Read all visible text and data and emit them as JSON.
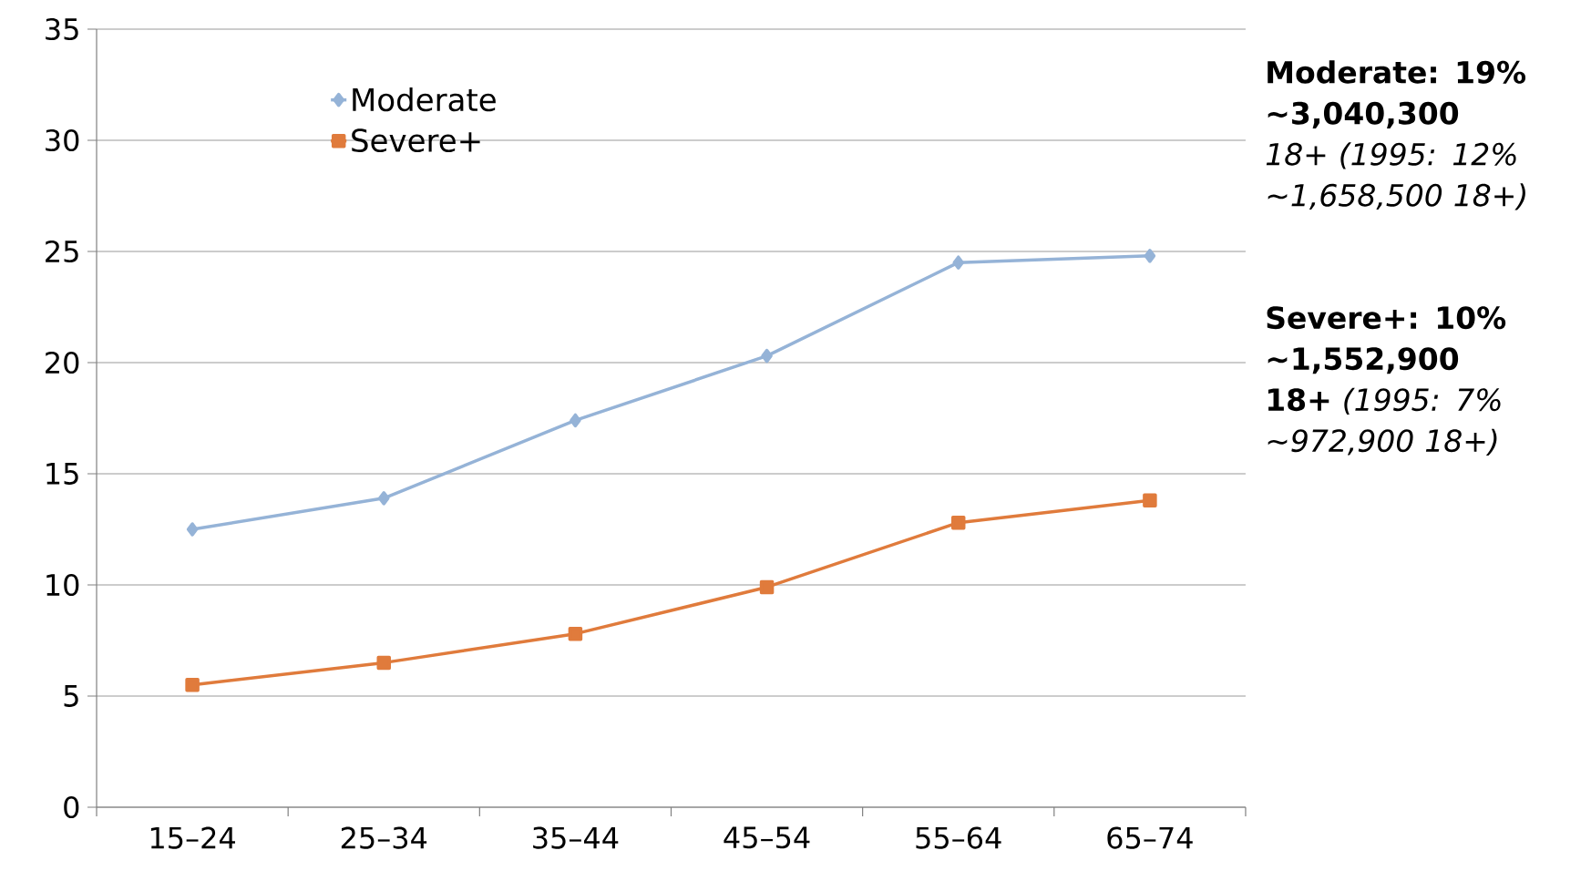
{
  "chart_data": {
    "type": "line",
    "categories": [
      "15–24",
      "25–34",
      "35–44",
      "45–54",
      "55–64",
      "65–74"
    ],
    "series": [
      {
        "name": "Moderate",
        "color": "#95b3d7",
        "marker": "diamond",
        "values": [
          12.5,
          13.9,
          17.4,
          20.3,
          24.5,
          24.8
        ]
      },
      {
        "name": "Severe+",
        "color": "#e07b3c",
        "marker": "square",
        "values": [
          5.5,
          6.5,
          7.8,
          9.9,
          12.8,
          13.8
        ]
      }
    ],
    "ylim": [
      0,
      35
    ],
    "yticks": [
      0,
      5,
      10,
      15,
      20,
      25,
      30,
      35
    ],
    "grid": "y",
    "legend": "top left",
    "annotations": [
      "**Moderate: 19% ~3,040,300** *18+ (1995: 12% ~1,658,500 18+)*",
      "**Severe+: 10% ~1,552,900 18+** *(1995: 7% ~972,900 18+)*"
    ]
  }
}
